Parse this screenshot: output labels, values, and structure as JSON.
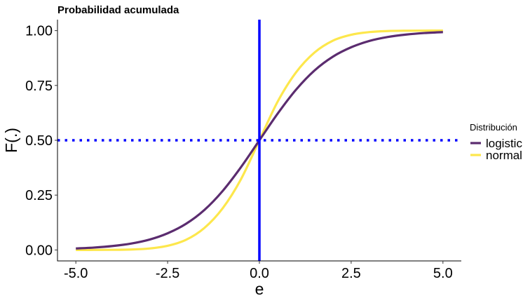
{
  "chart_data": {
    "type": "line",
    "title": "Probabilidad acumulada",
    "xlabel": "e",
    "ylabel": "F(.)",
    "xlim": [
      -5.5,
      5.5
    ],
    "ylim": [
      -0.05,
      1.05
    ],
    "x_ticks": [
      -5.0,
      -2.5,
      0.0,
      2.5,
      5.0
    ],
    "x_tick_labels": [
      "-5.0",
      "-2.5",
      "0.0",
      "2.5",
      "5.0"
    ],
    "y_ticks": [
      0.0,
      0.25,
      0.5,
      0.75,
      1.0
    ],
    "y_tick_labels": [
      "0.00",
      "0.25",
      "0.50",
      "0.75",
      "1.00"
    ],
    "grid": false,
    "legend": {
      "title": "Distribución",
      "position": "right"
    },
    "series": [
      {
        "name": "logistic",
        "color": "#5b2c6f",
        "x": [
          -5,
          -4.5,
          -4,
          -3.5,
          -3,
          -2.5,
          -2,
          -1.5,
          -1,
          -0.5,
          0,
          0.5,
          1,
          1.5,
          2,
          2.5,
          3,
          3.5,
          4,
          4.5,
          5
        ],
        "y": [
          0.0067,
          0.011,
          0.018,
          0.029,
          0.047,
          0.076,
          0.119,
          0.182,
          0.269,
          0.378,
          0.5,
          0.622,
          0.731,
          0.818,
          0.881,
          0.924,
          0.953,
          0.971,
          0.982,
          0.989,
          0.9933
        ]
      },
      {
        "name": "normal",
        "color": "#fde74c",
        "x": [
          -5,
          -4.5,
          -4,
          -3.5,
          -3,
          -2.5,
          -2,
          -1.5,
          -1,
          -0.5,
          0,
          0.5,
          1,
          1.5,
          2,
          2.5,
          3,
          3.5,
          4,
          4.5,
          5
        ],
        "y": [
          0.0,
          0.0001,
          0.0005,
          0.002,
          0.0066,
          0.019,
          0.046,
          0.1,
          0.19,
          0.323,
          0.5,
          0.677,
          0.81,
          0.9,
          0.954,
          0.981,
          0.9934,
          0.998,
          0.9995,
          0.9999,
          1.0
        ]
      }
    ],
    "reference_lines": [
      {
        "orientation": "vertical",
        "value": 0,
        "style": "solid",
        "color": "#0000ff"
      },
      {
        "orientation": "horizontal",
        "value": 0.5,
        "style": "dotted",
        "color": "#0000ff"
      }
    ]
  }
}
